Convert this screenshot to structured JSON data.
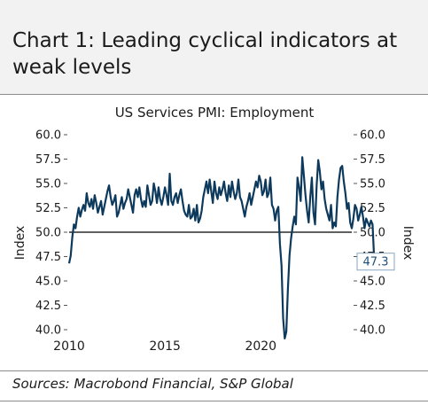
{
  "header": {
    "title": "Chart 1: Leading cyclical indicators at weak levels"
  },
  "source": "Sources: Macrobond Financial, S&P Global",
  "colors": {
    "line": "#0d3a5c",
    "reference_line": "#000000",
    "annotation": "#1f4e79",
    "header_bg": "#f2f2f2"
  },
  "chart_data": {
    "type": "line",
    "title": "US Services PMI: Employment",
    "ylabel": "Index",
    "ylabel_right": "Index",
    "ylim": [
      40,
      60
    ],
    "yticks": [
      40.0,
      42.5,
      45.0,
      47.5,
      50.0,
      52.5,
      55.0,
      57.5,
      60.0
    ],
    "ytick_labels": [
      "40.0",
      "42.5",
      "45.0",
      "47.5",
      "50.0",
      "52.5",
      "55.0",
      "57.5",
      "60.0"
    ],
    "xlim": [
      "2010-01",
      "2024-10"
    ],
    "xticks": [
      "2010",
      "2015",
      "2020"
    ],
    "reference_line": 50,
    "last_value_label": "47.3",
    "legend": "none",
    "grid": false,
    "series": [
      {
        "frequency": "monthly",
        "start": "2010-01",
        "values": [
          46.8,
          47.6,
          49.5,
          50.8,
          50.4,
          51.6,
          52.5,
          51.6,
          52.3,
          52.8,
          52.2,
          54.0,
          53.0,
          52.6,
          53.4,
          52.4,
          53.8,
          53.0,
          52.0,
          52.6,
          53.2,
          51.8,
          52.6,
          53.4,
          54.2,
          54.8,
          53.6,
          52.8,
          53.2,
          53.8,
          51.6,
          52.0,
          52.8,
          53.6,
          52.4,
          53.0,
          53.4,
          54.4,
          53.6,
          52.8,
          52.0,
          53.8,
          54.4,
          53.6,
          54.6,
          53.4,
          52.6,
          53.2,
          52.6,
          54.8,
          53.8,
          52.8,
          53.2,
          55.0,
          54.2,
          53.0,
          54.6,
          53.4,
          52.8,
          53.6,
          54.6,
          53.8,
          52.8,
          56.0,
          53.2,
          52.8,
          53.6,
          54.0,
          53.0,
          53.8,
          54.4,
          53.2,
          52.2,
          51.8,
          51.6,
          52.8,
          51.4,
          51.6,
          52.4,
          51.2,
          52.8,
          51.0,
          51.4,
          52.2,
          53.6,
          54.4,
          55.2,
          54.0,
          55.4,
          54.2,
          53.0,
          55.2,
          54.0,
          53.4,
          54.6,
          53.8,
          54.4,
          55.2,
          54.0,
          53.2,
          54.8,
          53.6,
          55.2,
          54.2,
          53.4,
          54.0,
          55.4,
          53.6,
          53.2,
          52.4,
          51.6,
          52.6,
          53.2,
          54.0,
          52.8,
          53.6,
          54.4,
          55.2,
          54.6,
          55.8,
          55.2,
          53.8,
          54.2,
          55.4,
          53.6,
          54.0,
          55.6,
          52.8,
          52.4,
          51.2,
          52.2,
          52.6,
          48.8,
          46.6,
          41.2,
          39.1,
          39.8,
          44.2,
          47.6,
          49.4,
          50.6,
          51.6,
          50.8,
          55.6,
          54.6,
          53.2,
          57.7,
          55.8,
          53.8,
          52.2,
          51.0,
          53.6,
          55.6,
          52.0,
          50.8,
          54.8,
          57.4,
          56.2,
          54.4,
          55.2,
          53.4,
          52.4,
          51.8,
          51.2,
          52.8,
          50.4,
          51.0,
          50.6,
          53.6,
          55.4,
          56.6,
          56.8,
          55.2,
          54.0,
          52.4,
          53.0,
          51.0,
          50.4,
          51.4,
          52.8,
          52.4,
          51.2,
          51.8,
          52.6,
          51.6,
          50.4,
          51.4,
          51.0,
          50.6,
          51.2,
          50.8,
          47.3
        ]
      }
    ]
  }
}
